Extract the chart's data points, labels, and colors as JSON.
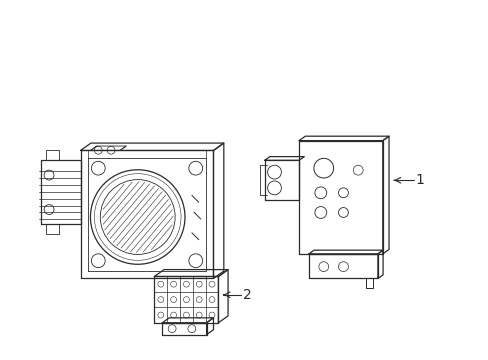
{
  "background_color": "#ffffff",
  "line_color": "#2a2a2a",
  "line_width": 0.9,
  "label_1": "1",
  "label_2": "2",
  "figsize": [
    4.89,
    3.6
  ],
  "dpi": 100
}
